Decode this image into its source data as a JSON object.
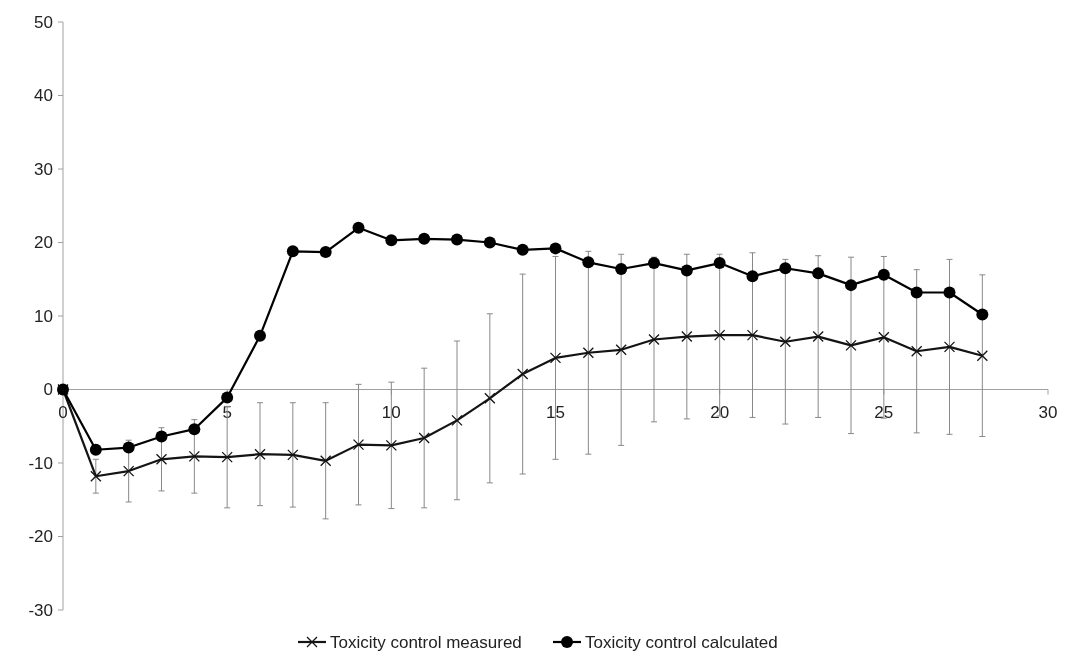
{
  "chart_data": {
    "type": "line",
    "x": [
      0,
      1,
      2,
      3,
      4,
      5,
      6,
      7,
      8,
      9,
      10,
      11,
      12,
      13,
      14,
      15,
      16,
      17,
      18,
      19,
      20,
      21,
      22,
      23,
      24,
      25,
      26,
      27,
      28
    ],
    "series": [
      {
        "name": "Toxicity control measured",
        "color": "#141414",
        "marker": "cross",
        "values": [
          0,
          -11.8,
          -11.1,
          -9.5,
          -9.1,
          -9.2,
          -8.8,
          -8.9,
          -9.7,
          -7.5,
          -7.6,
          -6.6,
          -4.2,
          -1.2,
          2.1,
          4.3,
          5.0,
          5.4,
          6.8,
          7.2,
          7.4,
          7.4,
          6.5,
          7.2,
          6.0,
          7.1,
          5.2,
          5.8,
          4.6
        ],
        "errors": [
          null,
          2.3,
          4.2,
          4.3,
          5.0,
          6.9,
          7.0,
          7.1,
          7.9,
          8.2,
          8.6,
          9.5,
          10.8,
          11.5,
          13.6,
          13.8,
          13.8,
          13.0,
          11.2,
          11.2,
          11.0,
          11.2,
          11.2,
          11.0,
          12.0,
          11.0,
          11.1,
          11.9,
          11.0
        ]
      },
      {
        "name": "Toxicity control calculated",
        "color": "#000000",
        "marker": "circle",
        "values": [
          0,
          -8.2,
          -7.9,
          -6.4,
          -5.4,
          -1.1,
          7.3,
          18.8,
          18.7,
          22.0,
          20.3,
          20.5,
          20.4,
          20.0,
          19.0,
          19.2,
          17.3,
          16.4,
          17.2,
          16.2,
          17.2,
          15.4,
          16.5,
          15.8,
          14.2,
          15.6,
          13.2,
          13.2,
          10.2
        ]
      }
    ],
    "xlim": [
      0,
      30
    ],
    "xticks": [
      0,
      5,
      10,
      15,
      20,
      25,
      30
    ],
    "ylim": [
      -30,
      50
    ],
    "yticks": [
      -30,
      -20,
      -10,
      0,
      10,
      20,
      30,
      40,
      50
    ],
    "grid": false,
    "legend": "bottom"
  }
}
